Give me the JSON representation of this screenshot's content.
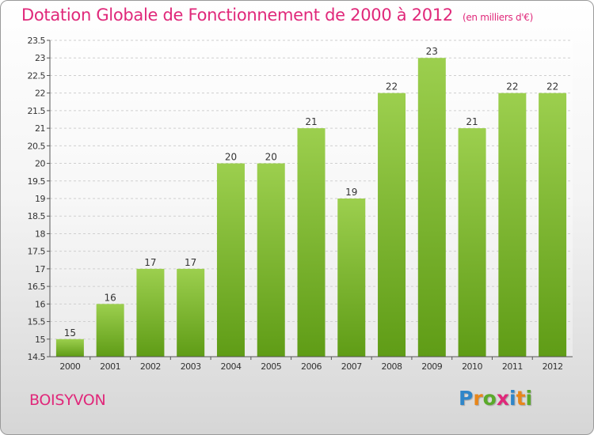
{
  "title": "Dotation Globale de Fonctionnement de 2000 à 2012",
  "subtitle": "(en milliers d'€)",
  "commune": "BOISYVON",
  "logo": {
    "text": "Proxiti",
    "letters": [
      {
        "ch": "P",
        "color": "#2f86c9"
      },
      {
        "ch": "r",
        "color": "#e8861a"
      },
      {
        "ch": "o",
        "color": "#5aaa2a"
      },
      {
        "ch": "x",
        "color": "#e0287a"
      },
      {
        "ch": "i",
        "color": "#2f86c9"
      },
      {
        "ch": "t",
        "color": "#e8861a"
      },
      {
        "ch": "i",
        "color": "#5aaa2a"
      }
    ]
  },
  "colors": {
    "accent": "#e0287a",
    "bar_top": "#9ccf4e",
    "bar_bottom": "#5f9c16"
  },
  "chart_data": {
    "type": "bar",
    "categories": [
      "2000",
      "2001",
      "2002",
      "2003",
      "2004",
      "2005",
      "2006",
      "2007",
      "2008",
      "2009",
      "2010",
      "2011",
      "2012"
    ],
    "values": [
      15,
      16,
      17,
      17,
      20,
      20,
      21,
      19,
      22,
      23,
      21,
      22,
      22
    ],
    "value_labels": [
      "15",
      "16",
      "17",
      "17",
      "20",
      "20",
      "21",
      "19",
      "22",
      "23",
      "21",
      "22",
      "22"
    ],
    "ylim": [
      14.5,
      23.5
    ],
    "yticks": [
      14.5,
      15,
      15.5,
      16,
      16.5,
      17,
      17.5,
      18,
      18.5,
      19,
      19.5,
      20,
      20.5,
      21,
      21.5,
      22,
      22.5,
      23,
      23.5
    ],
    "ytick_labels": [
      "14.5",
      "15",
      "15.5",
      "16",
      "16.5",
      "17",
      "17.5",
      "18",
      "18.5",
      "19",
      "19.5",
      "20",
      "20.5",
      "21",
      "21.5",
      "22",
      "22.5",
      "23",
      "23.5"
    ],
    "grid": true,
    "xlabel": "",
    "ylabel": ""
  }
}
